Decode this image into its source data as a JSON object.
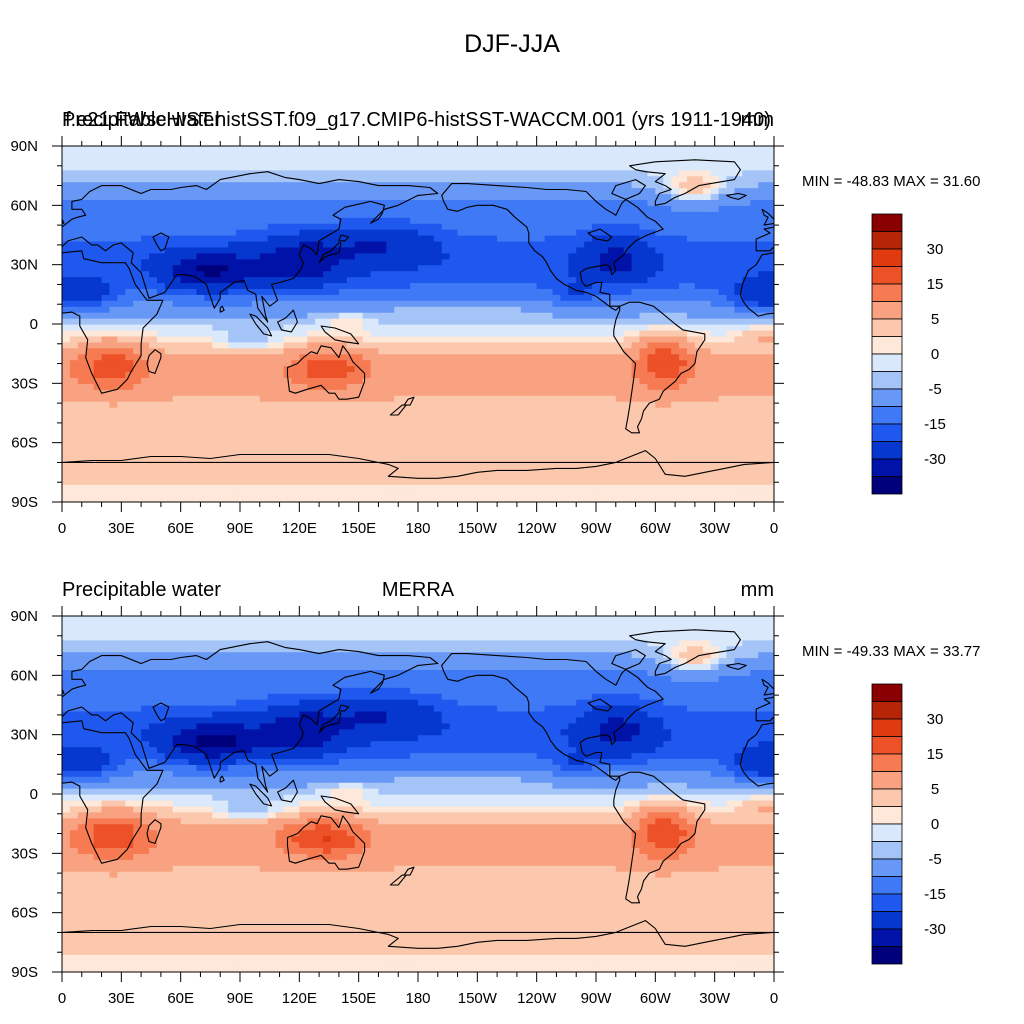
{
  "figure": {
    "title": "DJF-JJA"
  },
  "colors": {
    "levels": [
      -40,
      -30,
      -20,
      -15,
      -10,
      -5,
      -2,
      0,
      2,
      5,
      10,
      15,
      20,
      30,
      40
    ],
    "fills": [
      "#00007a",
      "#0012a8",
      "#0638cf",
      "#1f58ee",
      "#3f79f5",
      "#6898f6",
      "#a4c3f7",
      "#d9e8fb",
      "#fde8d9",
      "#fcc8ad",
      "#f8a281",
      "#f67b52",
      "#ed5128",
      "#e03a10",
      "#b72508",
      "#8a0000"
    ],
    "coast": "#000000"
  },
  "panels": [
    {
      "id": "model",
      "left_title": "Precipitable water",
      "center_title": "f.e21.FWscHIST.histSST.f09_g17.CMIP6-histSST-WACCM.001 (yrs 1911-1940)",
      "units": "mm",
      "stats": "MIN = -48.83 MAX =  31.60"
    },
    {
      "id": "obs",
      "left_title": "Precipitable water",
      "center_title": "MERRA",
      "units": "mm",
      "stats": "MIN = -49.33 MAX =  33.77"
    }
  ],
  "chart_data": [
    {
      "type": "heatmap",
      "variable": "Precipitable water",
      "case": "f.e21.FWscHIST.histSST.f09_g17.CMIP6-histSST-WACCM.001 (yrs 1911-1940)",
      "units": "mm",
      "min": -48.83,
      "max": 31.6,
      "x_ticks": [
        "0",
        "30E",
        "60E",
        "90E",
        "120E",
        "150E",
        "180",
        "150W",
        "120W",
        "90W",
        "60W",
        "30W",
        "0"
      ],
      "y_ticks": [
        "90N",
        "60N",
        "30N",
        "0",
        "30S",
        "60S",
        "90S"
      ],
      "xlim": [
        0,
        360
      ],
      "ylim": [
        -90,
        90
      ],
      "colorbar_labels": [
        "30",
        "15",
        "5",
        "0",
        "-5",
        "-15",
        "-30"
      ]
    },
    {
      "type": "heatmap",
      "variable": "Precipitable water",
      "case": "MERRA",
      "units": "mm",
      "min": -49.33,
      "max": 33.77,
      "x_ticks": [
        "0",
        "30E",
        "60E",
        "90E",
        "120E",
        "150E",
        "180",
        "150W",
        "120W",
        "90W",
        "60W",
        "30W",
        "0"
      ],
      "y_ticks": [
        "90N",
        "60N",
        "30N",
        "0",
        "30S",
        "60S",
        "90S"
      ],
      "xlim": [
        0,
        360
      ],
      "ylim": [
        -90,
        90
      ],
      "colorbar_labels": [
        "30",
        "15",
        "5",
        "0",
        "-5",
        "-15",
        "-30"
      ]
    }
  ]
}
